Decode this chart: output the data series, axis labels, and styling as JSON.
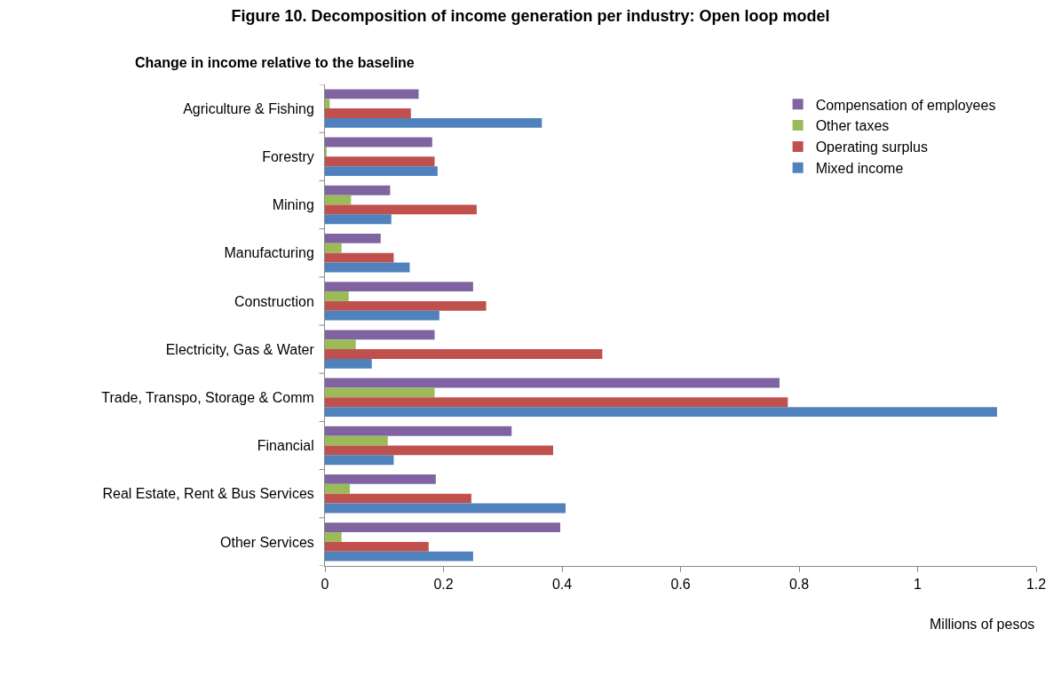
{
  "chart_data": {
    "type": "bar",
    "orientation": "horizontal",
    "title": "Figure 10. Decomposition of income generation per industry: Open loop model",
    "subtitle": "Change in income relative to the baseline",
    "xlabel": "Millions of pesos",
    "categories": [
      "Agriculture & Fishing",
      "Forestry",
      "Mining",
      "Manufacturing",
      "Construction",
      "Electricity, Gas & Water",
      "Trade, Transpo, Storage & Comm",
      "Financial",
      "Real Estate, Rent & Bus Services",
      "Other Services"
    ],
    "series": [
      {
        "name": "Compensation of employees",
        "color": "#8064a2",
        "values": [
          0.158,
          0.181,
          0.11,
          0.094,
          0.25,
          0.185,
          0.767,
          0.315,
          0.187,
          0.397
        ]
      },
      {
        "name": "Other taxes",
        "color": "#9bbb59",
        "values": [
          0.008,
          0.002,
          0.044,
          0.028,
          0.04,
          0.052,
          0.185,
          0.106,
          0.042,
          0.028
        ]
      },
      {
        "name": "Operating surplus",
        "color": "#c0504d",
        "values": [
          0.145,
          0.185,
          0.256,
          0.116,
          0.272,
          0.468,
          0.781,
          0.385,
          0.247,
          0.175
        ]
      },
      {
        "name": "Mixed income",
        "color": "#4f81bd",
        "values": [
          0.366,
          0.19,
          0.112,
          0.143,
          0.193,
          0.079,
          1.134,
          0.116,
          0.406,
          0.25
        ]
      }
    ],
    "xlim": [
      0,
      1.2
    ],
    "xticks": [
      0,
      0.2,
      0.4,
      0.6,
      0.8,
      1,
      1.2
    ],
    "grid": false,
    "legend": "top right"
  }
}
